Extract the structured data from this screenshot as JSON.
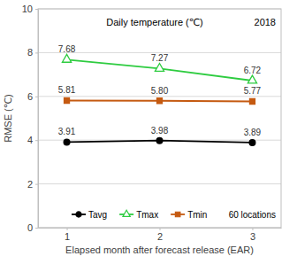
{
  "chart_data": {
    "type": "line",
    "title": "Daily temperature (℃)",
    "annotations": [
      "2018",
      "60 locations"
    ],
    "x_label": "Elapsed month after forecast release (EAR)",
    "y_label": "RMSE (℃)",
    "categories": [
      "1",
      "2",
      "3"
    ],
    "series": [
      {
        "name": "Tavg",
        "color": "#000000",
        "marker": "circle",
        "values": [
          3.91,
          3.98,
          3.89
        ],
        "value_labels": [
          "3.91",
          "3.98",
          "3.89"
        ]
      },
      {
        "name": "Tmax",
        "color": "#2ecc40",
        "marker": "triangle",
        "values": [
          7.68,
          7.27,
          6.72
        ],
        "value_labels": [
          "7.68",
          "7.27",
          "6.72"
        ]
      },
      {
        "name": "Tmin",
        "color": "#c55a11",
        "marker": "square",
        "values": [
          5.81,
          5.8,
          5.77
        ],
        "value_labels": [
          "5.81",
          "5.80",
          "5.77"
        ]
      }
    ],
    "ylim": [
      0,
      10
    ],
    "yticks": [
      0,
      2,
      4,
      6,
      8,
      10
    ],
    "grid": true,
    "legend": "bottom",
    "data_labels": true
  }
}
